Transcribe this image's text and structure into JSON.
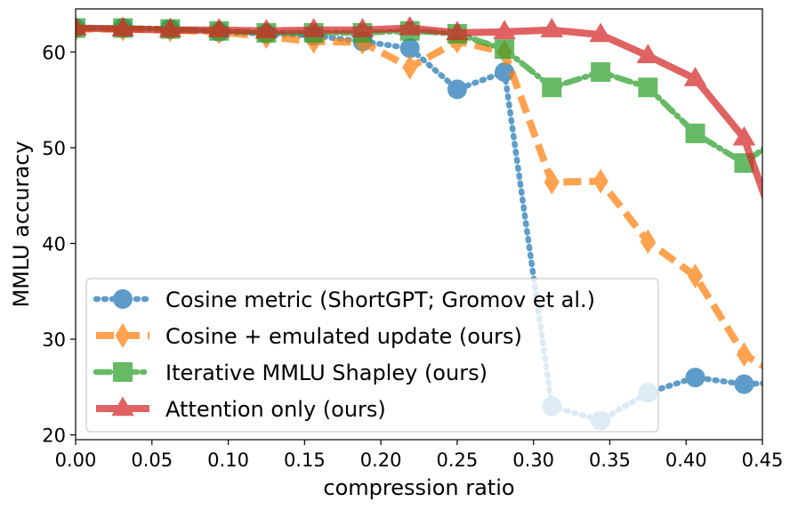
{
  "chart_data": {
    "type": "line",
    "xlabel": "compression ratio",
    "ylabel": "MMLU accuracy",
    "xlim": [
      0.0,
      0.45
    ],
    "ylim": [
      19.5,
      64.5
    ],
    "xticks": [
      "0.00",
      "0.05",
      "0.10",
      "0.15",
      "0.20",
      "0.25",
      "0.30",
      "0.35",
      "0.40",
      "0.45"
    ],
    "yticks": [
      "20",
      "30",
      "40",
      "50",
      "60"
    ],
    "grid": false,
    "legend_position": "lower-left",
    "series": [
      {
        "name": "Cosine metric (ShortGPT; Gromov et al.)",
        "color": "#1f77b4",
        "linestyle": "dotted",
        "marker": "circle",
        "x": [
          0.0,
          0.031,
          0.062,
          0.094,
          0.125,
          0.156,
          0.188,
          0.219,
          0.25,
          0.281,
          0.312,
          0.344,
          0.375,
          0.406,
          0.438,
          0.469
        ],
        "y": [
          62.5,
          62.5,
          62.4,
          62.1,
          61.9,
          61.7,
          61.1,
          60.4,
          56.1,
          57.9,
          23.0,
          21.5,
          24.4,
          26.0,
          25.3,
          25.5
        ]
      },
      {
        "name": "Cosine + emulated update (ours)",
        "color": "#ff7f0e",
        "linestyle": "dashed",
        "marker": "thin-diamond",
        "x": [
          0.0,
          0.031,
          0.062,
          0.094,
          0.125,
          0.156,
          0.188,
          0.219,
          0.25,
          0.281,
          0.312,
          0.344,
          0.375,
          0.406,
          0.438,
          0.469
        ],
        "y": [
          62.4,
          62.4,
          62.3,
          62.1,
          61.6,
          61.1,
          61.0,
          58.4,
          61.1,
          60.0,
          46.4,
          46.5,
          40.2,
          36.6,
          28.4,
          25.5
        ]
      },
      {
        "name": "Iterative MMLU Shapley (ours)",
        "color": "#2ca02c",
        "linestyle": "dashdot",
        "marker": "square",
        "x": [
          0.0,
          0.031,
          0.062,
          0.094,
          0.125,
          0.156,
          0.188,
          0.219,
          0.25,
          0.281,
          0.312,
          0.344,
          0.375,
          0.406,
          0.438,
          0.469
        ],
        "y": [
          62.5,
          62.5,
          62.4,
          62.2,
          62.0,
          62.0,
          62.0,
          62.2,
          61.9,
          60.3,
          56.3,
          57.9,
          56.3,
          51.5,
          48.4,
          52.0
        ]
      },
      {
        "name": "Attention only (ours)",
        "color": "#d62728",
        "linestyle": "solid",
        "marker": "triangle",
        "x": [
          0.0,
          0.031,
          0.062,
          0.094,
          0.125,
          0.156,
          0.188,
          0.219,
          0.25,
          0.281,
          0.312,
          0.344,
          0.375,
          0.406,
          0.438,
          0.469
        ],
        "y": [
          62.5,
          62.4,
          62.3,
          62.3,
          62.2,
          62.3,
          62.3,
          62.5,
          62.0,
          62.1,
          62.3,
          61.8,
          59.6,
          57.2,
          51.0,
          37.0
        ]
      }
    ]
  }
}
